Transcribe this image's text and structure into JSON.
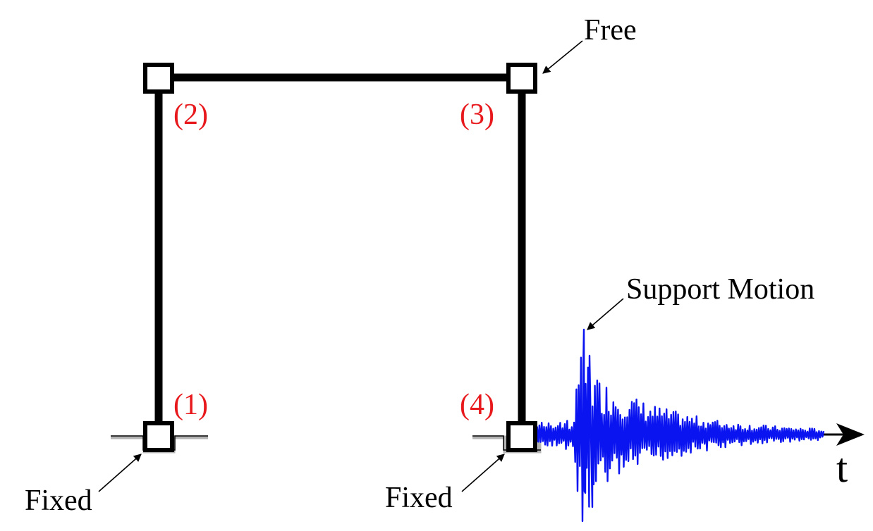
{
  "title": "",
  "nodes": [
    {
      "id": "node-1",
      "label": "(1)"
    },
    {
      "id": "node-2",
      "label": "(2)"
    },
    {
      "id": "node-3",
      "label": "(3)"
    },
    {
      "id": "node-4",
      "label": "(4)"
    }
  ],
  "labels": {
    "free": "Free",
    "fixed_left": "Fixed",
    "fixed_right": "Fixed",
    "support_motion": "Support Motion",
    "time_axis": "t"
  },
  "colors": {
    "frame": "#000000",
    "node_label": "#e8191c",
    "signal": "#0a14f0",
    "ground": "#aaaaaa",
    "text": "#000000"
  }
}
